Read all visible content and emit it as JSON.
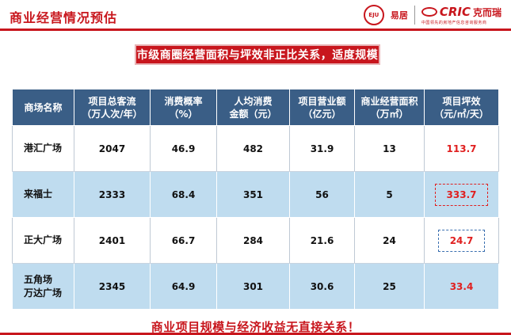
{
  "header": {
    "title": "商业经营情况预估",
    "eju_logo": "EJU",
    "eju_name": "易居",
    "cric_word": "CRIC",
    "cric_cn": "克而瑞",
    "cric_sub": "中国领先的房地产信息咨询服务商"
  },
  "banner": "市级商圈经营面积与坪效非正比关系，适度规模",
  "table": {
    "headers": [
      "商场名称",
      "项目总客流（万人次/年）",
      "消费概率（%）",
      "人均消费金额（元）",
      "项目营业额（亿元）",
      "商业经营面积（万㎡）",
      "项目坪效（元/㎡/天）"
    ],
    "header_lines": [
      [
        "商场名称"
      ],
      [
        "项目总客流",
        "（万人次/年）"
      ],
      [
        "消费概率",
        "（%）"
      ],
      [
        "人均消费",
        "金额（元）"
      ],
      [
        "项目营业额",
        "（亿元）"
      ],
      [
        "商业经营面积",
        "（万㎡）"
      ],
      [
        "项目坪效",
        "（元/㎡/天）"
      ]
    ],
    "rows": [
      {
        "name": [
          "港汇广场"
        ],
        "flow": "2047",
        "prob": "46.9",
        "spend": "482",
        "revenue": "31.9",
        "area": "13",
        "efficiency": "113.7"
      },
      {
        "name": [
          "来福士"
        ],
        "flow": "2333",
        "prob": "68.4",
        "spend": "351",
        "revenue": "56",
        "area": "5",
        "efficiency": "333.7"
      },
      {
        "name": [
          "正大广场"
        ],
        "flow": "2401",
        "prob": "66.7",
        "spend": "284",
        "revenue": "21.6",
        "area": "24",
        "efficiency": "24.7"
      },
      {
        "name": [
          "五角场",
          "万达广场"
        ],
        "flow": "2345",
        "prob": "64.9",
        "spend": "301",
        "revenue": "30.6",
        "area": "25",
        "efficiency": "33.4"
      }
    ]
  },
  "conclusion": "商业项目规模与经济收益无直接关系！",
  "colors": {
    "accent_red": "#c8161d",
    "header_blue": "#3a5e86",
    "row_alt": "#bfdcef",
    "value_red": "#e02020",
    "box_blue": "#3a6fb0"
  }
}
